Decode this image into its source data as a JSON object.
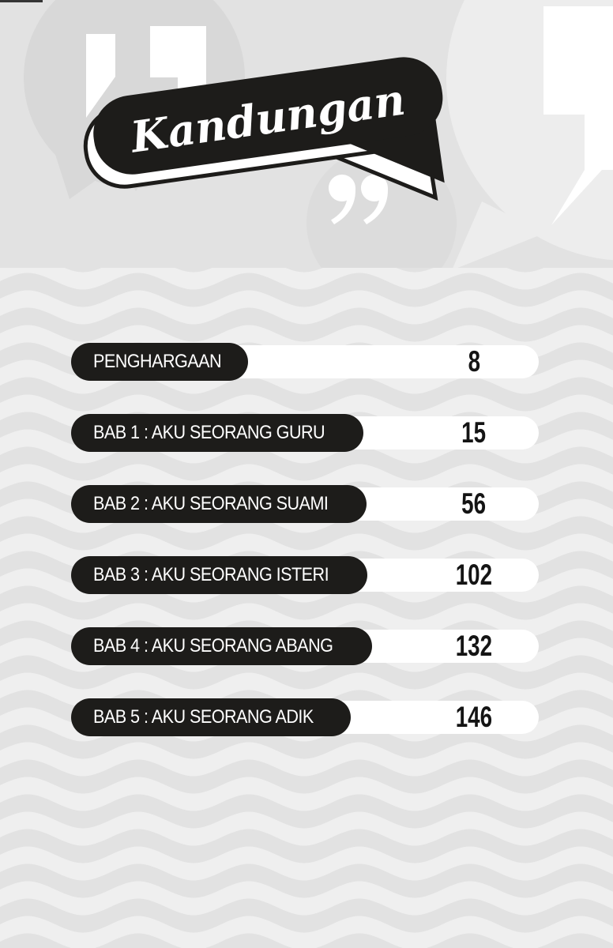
{
  "header": {
    "title": "Kandungan"
  },
  "toc": {
    "rows": [
      {
        "label": "PENGHARGAAN",
        "page": "8"
      },
      {
        "label": "BAB 1 : AKU SEORANG GURU",
        "page": "15"
      },
      {
        "label": "BAB 2 : AKU SEORANG SUAMI",
        "page": "56"
      },
      {
        "label": "BAB 3 : AKU SEORANG ISTERI",
        "page": "102"
      },
      {
        "label": "BAB 4 : AKU SEORANG ABANG",
        "page": "132"
      },
      {
        "label": "BAB 5 : AKU SEORANG ADIK",
        "page": "146"
      }
    ]
  },
  "decor": {
    "open_quote_icon": "“",
    "close_quote_icon": "”",
    "colors": {
      "ink": "#1d1c1a",
      "header_bg": "#e2e2e2",
      "wave_light": "#efefef",
      "wave_dark": "#e2e2e2",
      "bubble_left": "#d8d8d8",
      "bubble_right": "#ededed",
      "bubble_quote": "#dcdcdc",
      "bar": "#ffffff",
      "label_text": "#ffffff",
      "page_number": "#141414"
    }
  }
}
